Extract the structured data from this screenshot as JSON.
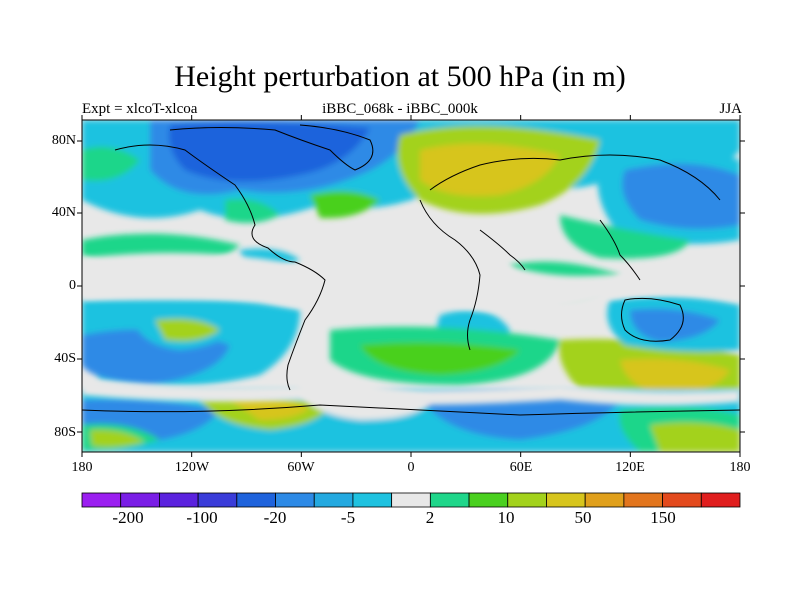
{
  "title": "Height perturbation at 500 hPa (in m)",
  "subtitle_left": "Expt = xlcoT-xlcoa",
  "subtitle_center": "iBBC_068k - iBBC_000k",
  "subtitle_right": "JJA",
  "lat_labels": [
    "80N",
    "40N",
    "0",
    "40S",
    "80S"
  ],
  "lon_labels": [
    "180",
    "120W",
    "60W",
    "0",
    "60E",
    "120E",
    "180"
  ],
  "colorbar": {
    "colors": [
      "#9b1ff0",
      "#7a1ee6",
      "#5b22de",
      "#3a3cd9",
      "#1f63dc",
      "#2d8ae6",
      "#24a9e0",
      "#1fc2e0",
      "#e8e8e8",
      "#1fd68a",
      "#4ad01f",
      "#a3d21c",
      "#d7c51d",
      "#e0a01c",
      "#e2751d",
      "#e34a1d",
      "#e01e1e"
    ],
    "labels": [
      "-200",
      "-100",
      "-20",
      "-5",
      "2",
      "10",
      "50",
      "150"
    ]
  },
  "map_colors": {
    "neutral": "#e8e8e8",
    "deep_blue": "#1f63dc",
    "blue": "#2d8ae6",
    "cyan": "#1fc2e0",
    "green": "#1fd68a",
    "lime": "#4ad01f",
    "yellow": "#a3d21c",
    "olive": "#d7c51d",
    "orange": "#e0a01c"
  }
}
